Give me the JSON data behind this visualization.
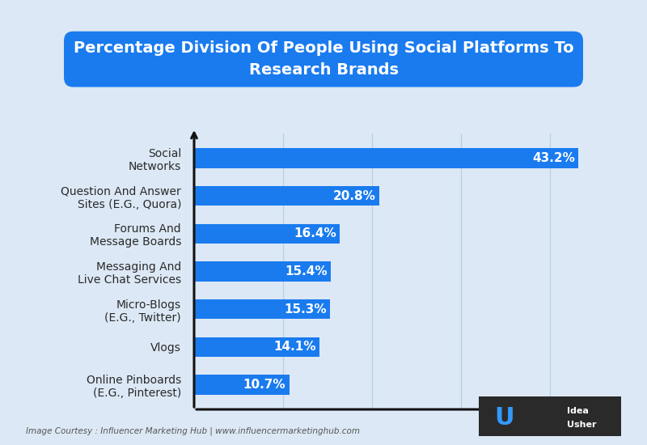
{
  "title_line1": "Percentage Division Of People Using Social Platforms To",
  "title_line2": "Research Brands",
  "categories": [
    "Online Pinboards\n(E.G., Pinterest)",
    "Vlogs",
    "Micro-Blogs\n(E.G., Twitter)",
    "Messaging And\nLive Chat Services",
    "Forums And\nMessage Boards",
    "Question And Answer\nSites (E.G., Quora)",
    "Social\nNetworks"
  ],
  "values": [
    10.7,
    14.1,
    15.3,
    15.4,
    16.4,
    20.8,
    43.2
  ],
  "bar_color": "#1a7bef",
  "bar_label_color": "#ffffff",
  "bar_label_fontsize": 11,
  "background_color": "#dce8f5",
  "title_bg_color": "#1a7bef",
  "title_text_color": "#ffffff",
  "axis_color": "#111111",
  "grid_color": "#b8cfe8",
  "footnote": "Image Courtesy : Influencer Marketing Hub | www.influencermarketinghub.com",
  "xlim": [
    0,
    48
  ],
  "bar_height": 0.52,
  "title_fontsize": 14,
  "category_fontsize": 10
}
